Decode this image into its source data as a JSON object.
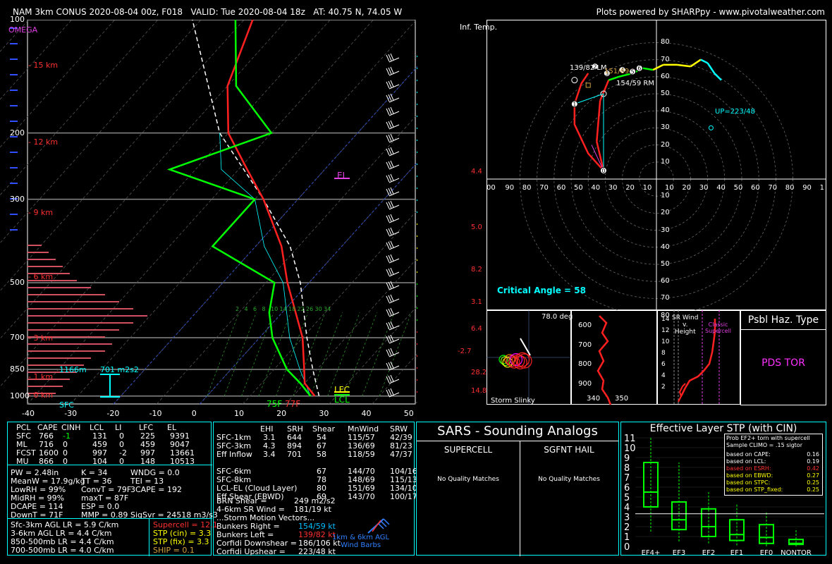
{
  "header": {
    "title": "NAM 3km CONUS 2020-08-04 00z, F018   VALID: Tue 2020-08-04 18z   AT: 40.75 N, 74.05 W",
    "credit": "Plots powered by SHARPpy - www.pivotalweather.com"
  },
  "skewt": {
    "omega_label": "OMEGA",
    "pressure_labels": [
      "100",
      "200",
      "300",
      "500",
      "700",
      "850",
      "1000"
    ],
    "height_labels": [
      "15 km",
      "12 km",
      "9 km",
      "6 km",
      "3 km",
      "1 km",
      "0 km"
    ],
    "x_ticks": [
      "-40",
      "-30",
      "-20",
      "-10",
      "0",
      "10",
      "20",
      "30",
      "40",
      "50"
    ],
    "mixing_ratio_labels": [
      "2",
      "4",
      "6",
      "8",
      "10",
      "14",
      "18",
      "22",
      "26",
      "30",
      "34"
    ],
    "el_label": "EL",
    "lfc_label": "LFC",
    "lcl_label": "LCL",
    "sfc_label": "SFC",
    "sfc_dewpoint": "75F",
    "sfc_temp": "77F",
    "eff_inflow_label": "1166m",
    "eff_srh_label": "701 m2s2",
    "inf_temp_label": "Inf. Temp.",
    "side_values": [
      "4.4",
      "5.0",
      "8.2",
      "3.1",
      "6.4",
      "-2.7",
      "28.2",
      "14.8"
    ]
  },
  "hodograph": {
    "ring_labels": [
      "10",
      "20",
      "30",
      "40",
      "50",
      "60",
      "70",
      "80"
    ],
    "lm_label": "139/82 LM",
    "mean_label": "151/69",
    "rm_label": "154/59 RM",
    "up_label": "UP=223/48",
    "critical_angle": "Critical Angle = 58",
    "x_left": [
      "00",
      "90",
      "80",
      "70",
      "60",
      "50",
      "40",
      "30",
      "20",
      "10"
    ],
    "x_right": [
      "10",
      "20",
      "30",
      "40",
      "50",
      "60",
      "70",
      "80",
      "90",
      "1"
    ],
    "points": [
      "0",
      "1",
      "2",
      "3",
      "4",
      "5",
      "6"
    ]
  },
  "slinky": {
    "title": "Storm Slinky",
    "deg": "78.0 deg"
  },
  "theta": {
    "y_labels": [
      "600",
      "700",
      "800",
      "900"
    ],
    "x_labels": [
      "340",
      "350"
    ]
  },
  "srwind": {
    "title": "SR Wind\nv.\nHeight",
    "classic": "Classic\nSupercell",
    "y_labels": [
      "14",
      "12",
      "10",
      "8",
      "6",
      "4",
      "2"
    ]
  },
  "haz": {
    "title": "Psbl Haz. Type",
    "value": "PDS TOR"
  },
  "parcel": {
    "headers": [
      "PCL",
      "CAPE",
      "CINH",
      "LCL",
      "LI",
      "LFC",
      "EL"
    ],
    "rows": [
      [
        "SFC",
        "766",
        "-1",
        "131",
        "0",
        "225",
        "9391"
      ],
      [
        "ML",
        "716",
        "0",
        "459",
        "0",
        "459",
        "9047"
      ],
      [
        "FCST",
        "1600",
        "0",
        "997",
        "-2",
        "997",
        "13661"
      ],
      [
        "MU",
        "866",
        "0",
        "104",
        "0",
        "148",
        "10513"
      ]
    ],
    "indices": [
      [
        "PW = 2.48in",
        "K = 34",
        "WNDG = 0.0"
      ],
      [
        "MeanW = 17.9g/kg",
        "TT = 36",
        "TEI = 13"
      ],
      [
        "LowRH = 99%",
        "ConvT = 79F",
        "3CAPE = 192"
      ],
      [
        "MidRH = 99%",
        "maxT = 87F",
        ""
      ],
      [
        "DCAPE = 114",
        "ESP = 0.0",
        ""
      ],
      [
        "DownT = 71F",
        "MMP = 0.89",
        "SigSvr = 24518 m3/s3"
      ]
    ],
    "lapse": [
      "Sfc-3km AGL LR = 5.9 C/km",
      "3-6km AGL LR = 4.4 C/km",
      "850-500mb LR = 4.4 C/km",
      "700-500mb LR = 4.0 C/km"
    ],
    "comp": [
      "Supercell = 12.1",
      "STP (cin) = 3.3",
      "STP (fix) = 3.3",
      "SHIP = 0.1"
    ]
  },
  "kinematics": {
    "headers": [
      "EHI",
      "SRH",
      "Shear",
      "MnWind",
      "SRW"
    ],
    "rows": [
      [
        "SFC-1km",
        "3.1",
        "644",
        "54",
        "115/57",
        "42/39"
      ],
      [
        "SFC-3km",
        "4.3",
        "894",
        "67",
        "136/69",
        "81/23"
      ],
      [
        "Eff Inflow",
        "3.4",
        "701",
        "58",
        "118/59",
        "47/37"
      ],
      [
        "",
        "",
        "",
        "",
        "",
        ""
      ],
      [
        "SFC-6km",
        "",
        "",
        "67",
        "144/70",
        "104/16"
      ],
      [
        "SFC-8km",
        "",
        "",
        "78",
        "148/69",
        "115/13"
      ],
      [
        "LCL-EL (Cloud Layer)",
        "",
        "",
        "80",
        "151/69",
        "134/10"
      ],
      [
        "Eff Shear (EBWD)",
        "",
        "",
        "69",
        "143/70",
        "100/17"
      ]
    ],
    "brn_shear": [
      "BRN Shear =",
      "249 m2/s2"
    ],
    "sr_wind": [
      "4-6km SR Wind =",
      "181/19 kt"
    ],
    "storm_vectors": "...Storm Motion Vectors...",
    "bunkers_right": [
      "Bunkers Right =",
      "154/59 kt"
    ],
    "bunkers_left": [
      "Bunkers Left =",
      "139/82 kt"
    ],
    "corfidi_down": [
      "Corfidi Downshear =",
      "186/106 kt"
    ],
    "corfidi_up": [
      "Corfidi Upshear =",
      "223/48 kt"
    ],
    "barbs_label": "1km & 6km AGL\nWind Barbs"
  },
  "sars": {
    "title": "SARS - Sounding Analogs",
    "supercell": "SUPERCELL",
    "hail": "SGFNT HAIL",
    "no_match": "No Quality Matches"
  },
  "stp": {
    "title": "Effective Layer STP (with CIN)",
    "prob_title": "Prob EF2+ torn with supercell",
    "sample": "Sample CLIMO = .15 sigtor",
    "lines": [
      {
        "label": "based on CAPE:",
        "value": "0.16",
        "color": "#ffffff"
      },
      {
        "label": "based on LCL:",
        "value": "0.19",
        "color": "#ffffff"
      },
      {
        "label": "based on ESRH:",
        "value": "0.42",
        "color": "#ff3030"
      },
      {
        "label": "based on EBWD:",
        "value": "0.27",
        "color": "#ffff00"
      },
      {
        "label": "based on STPC:",
        "value": "0.25",
        "color": "#ffff00"
      },
      {
        "label": "based on STP_fixed:",
        "value": "0.25",
        "color": "#ffff00"
      }
    ],
    "y_labels": [
      "11",
      "10",
      "9",
      "8",
      "7",
      "6",
      "5",
      "4",
      "3",
      "2",
      "1",
      "0"
    ],
    "categories": [
      "EF4+",
      "EF3",
      "EF2",
      "EF1",
      "EF0",
      "NONTOR"
    ]
  },
  "chart_data": [
    {
      "type": "line",
      "title": "Skew-T Log-P",
      "temperature_profile_C": [
        [
          1000,
          25
        ],
        [
          925,
          20
        ],
        [
          850,
          17
        ],
        [
          700,
          10
        ],
        [
          500,
          -5
        ],
        [
          400,
          -14
        ],
        [
          300,
          -28
        ],
        [
          250,
          -38
        ],
        [
          200,
          -50
        ],
        [
          150,
          -60
        ],
        [
          100,
          -68
        ]
      ],
      "dewpoint_profile_C": [
        [
          1000,
          24
        ],
        [
          925,
          19
        ],
        [
          850,
          13
        ],
        [
          700,
          3
        ],
        [
          600,
          -3
        ],
        [
          500,
          -8
        ],
        [
          400,
          -30
        ],
        [
          300,
          -30
        ],
        [
          250,
          -56
        ],
        [
          200,
          -40
        ],
        [
          150,
          -58
        ],
        [
          100,
          -72
        ]
      ],
      "xlim": [
        -40,
        50
      ],
      "pressure_levels": [
        100,
        200,
        300,
        500,
        700,
        850,
        1000
      ]
    },
    {
      "type": "box",
      "title": "Effective Layer STP (with CIN)",
      "categories": [
        "EF4+",
        "EF3",
        "EF2",
        "EF1",
        "EF0",
        "NONTOR"
      ],
      "boxes": [
        [
          1.5,
          4,
          5.5,
          8.5,
          11
        ],
        [
          0.5,
          1.7,
          2.7,
          4.5,
          8.5
        ],
        [
          0.3,
          1,
          2,
          3.8,
          5.5
        ],
        [
          0.1,
          0.6,
          1.2,
          2.7,
          4.3
        ],
        [
          0,
          0.3,
          0.9,
          2.2,
          3.5
        ],
        [
          0,
          0.2,
          0.3,
          0.7,
          1.8
        ]
      ],
      "ylim": [
        0,
        11
      ]
    }
  ]
}
